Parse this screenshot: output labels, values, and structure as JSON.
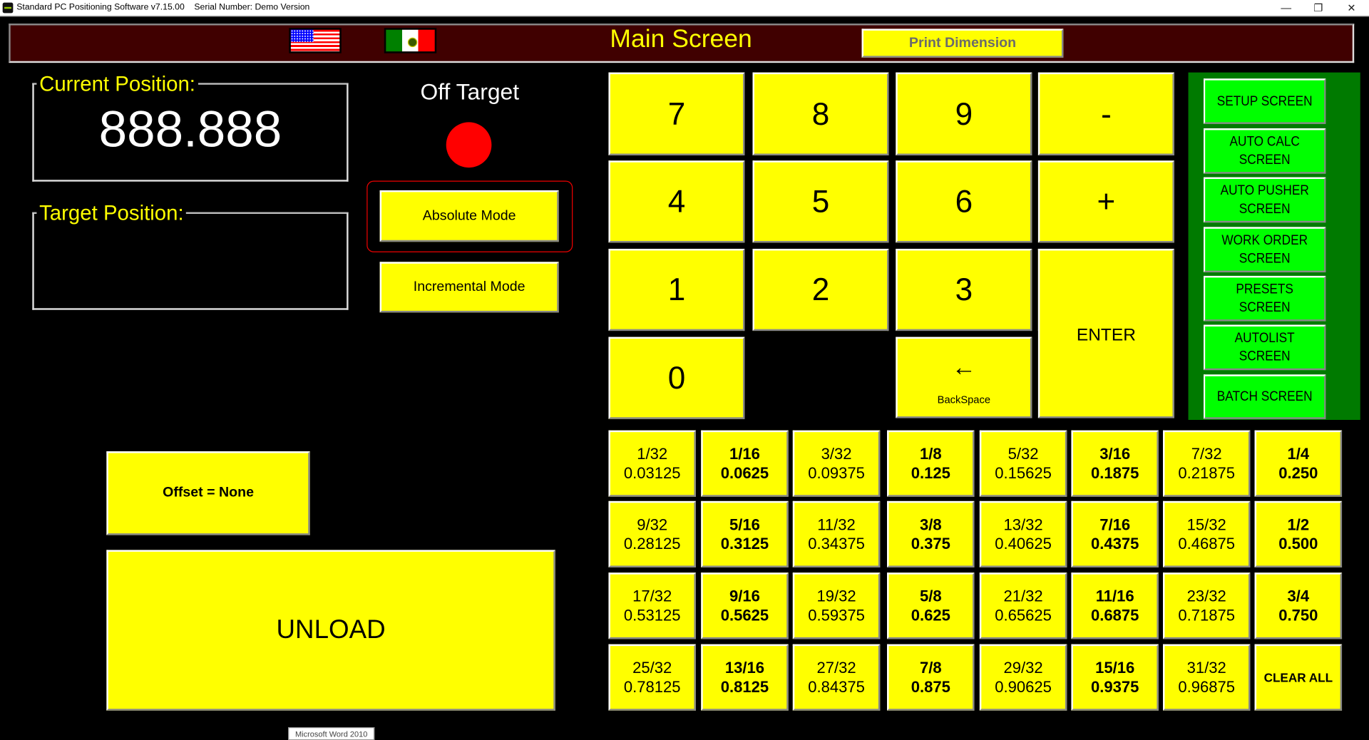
{
  "window": {
    "title": "Standard PC Positioning Software v7.15.00    Serial Number: Demo Version",
    "minimize": "—",
    "restore": "❐",
    "close": "✕"
  },
  "header": {
    "title": "Main Screen",
    "print_label": "Print Dimension",
    "flags": [
      "us-flag",
      "mexico-flag"
    ]
  },
  "current_position": {
    "label": "Current Position:",
    "value": "888.888"
  },
  "target_position": {
    "label": "Target Position:",
    "value": ""
  },
  "status": {
    "text": "Off Target",
    "indicator_color": "#ff0000"
  },
  "modes": {
    "absolute": "Absolute Mode",
    "incremental": "Incremental Mode",
    "selected": "absolute"
  },
  "offset": {
    "label": "Offset = None"
  },
  "unload": {
    "label": "UNLOAD"
  },
  "keypad": {
    "keys": [
      "7",
      "8",
      "9",
      "-",
      "4",
      "5",
      "6",
      "+",
      "1",
      "2",
      "3",
      ".",
      "0"
    ],
    "enter": "ENTER",
    "backspace": "BackSpace",
    "backspace_icon": "←"
  },
  "nav": {
    "items": [
      "SETUP SCREEN",
      "AUTO CALC SCREEN",
      "AUTO PUSHER SCREEN",
      "WORK ORDER SCREEN",
      "PRESETS SCREEN",
      "AUTOLIST SCREEN",
      "BATCH SCREEN"
    ]
  },
  "fractions": [
    {
      "f": "1/32",
      "d": "0.03125"
    },
    {
      "f": "1/16",
      "d": "0.0625"
    },
    {
      "f": "3/32",
      "d": "0.09375"
    },
    {
      "f": "1/8",
      "d": "0.125"
    },
    {
      "f": "5/32",
      "d": "0.15625"
    },
    {
      "f": "3/16",
      "d": "0.1875"
    },
    {
      "f": "7/32",
      "d": "0.21875"
    },
    {
      "f": "1/4",
      "d": "0.250"
    },
    {
      "f": "9/32",
      "d": "0.28125"
    },
    {
      "f": "5/16",
      "d": "0.3125"
    },
    {
      "f": "11/32",
      "d": "0.34375"
    },
    {
      "f": "3/8",
      "d": "0.375"
    },
    {
      "f": "13/32",
      "d": "0.40625"
    },
    {
      "f": "7/16",
      "d": "0.4375"
    },
    {
      "f": "15/32",
      "d": "0.46875"
    },
    {
      "f": "1/2",
      "d": "0.500"
    },
    {
      "f": "17/32",
      "d": "0.53125"
    },
    {
      "f": "9/16",
      "d": "0.5625"
    },
    {
      "f": "19/32",
      "d": "0.59375"
    },
    {
      "f": "5/8",
      "d": "0.625"
    },
    {
      "f": "21/32",
      "d": "0.65625"
    },
    {
      "f": "11/16",
      "d": "0.6875"
    },
    {
      "f": "23/32",
      "d": "0.71875"
    },
    {
      "f": "3/4",
      "d": "0.750"
    },
    {
      "f": "25/32",
      "d": "0.78125"
    },
    {
      "f": "13/16",
      "d": "0.8125"
    },
    {
      "f": "27/32",
      "d": "0.84375"
    },
    {
      "f": "7/8",
      "d": "0.875"
    },
    {
      "f": "29/32",
      "d": "0.90625"
    },
    {
      "f": "15/16",
      "d": "0.9375"
    },
    {
      "f": "31/32",
      "d": "0.96875"
    }
  ],
  "clear_all": "CLEAR ALL",
  "tooltip": "Microsoft Word 2010"
}
